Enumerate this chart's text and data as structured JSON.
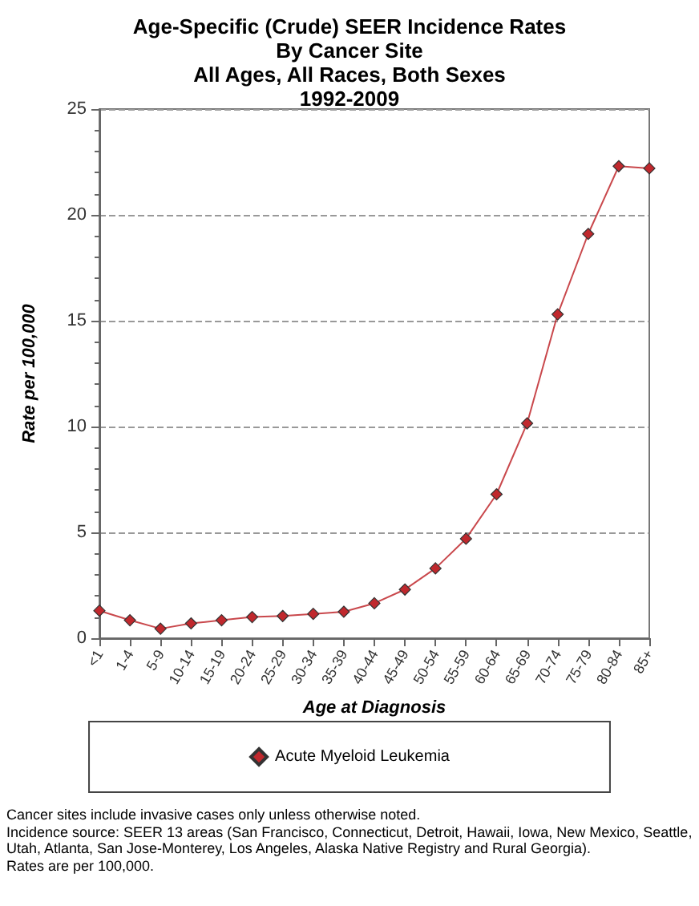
{
  "chart_data": {
    "type": "line",
    "title": "Age-Specific (Crude) SEER Incidence Rates\nBy Cancer Site\nAll Ages, All Races, Both Sexes\n1992-2009",
    "xlabel": "Age at Diagnosis",
    "ylabel": "Rate per 100,000",
    "categories": [
      "<1",
      "1-4",
      "5-9",
      "10-14",
      "15-19",
      "20-24",
      "25-29",
      "30-34",
      "35-39",
      "40-44",
      "45-49",
      "50-54",
      "55-59",
      "60-64",
      "65-69",
      "70-74",
      "75-79",
      "80-84",
      "85+"
    ],
    "series": [
      {
        "name": "Acute Myeloid Leukemia",
        "color": "#c0282d",
        "values": [
          1.3,
          0.85,
          0.45,
          0.7,
          0.85,
          1.0,
          1.05,
          1.15,
          1.25,
          1.65,
          2.3,
          3.3,
          4.7,
          6.8,
          10.15,
          15.3,
          19.1,
          22.3,
          22.2
        ]
      }
    ],
    "ylim": [
      0,
      25
    ],
    "yticks": [
      0,
      5,
      10,
      15,
      20,
      25
    ],
    "grid": "y",
    "legend": "bottom",
    "marker": "diamond",
    "line_style": "solid",
    "annotations": [
      "Cancer sites include invasive cases only unless otherwise noted.",
      "Incidence source: SEER 13 areas (San Francisco, Connecticut, Detroit, Hawaii, Iowa, New Mexico, Seattle, Utah, Atlanta, San Jose-Monterey, Los Angeles, Alaska Native Registry and Rural Georgia).",
      "Rates are per 100,000."
    ]
  }
}
